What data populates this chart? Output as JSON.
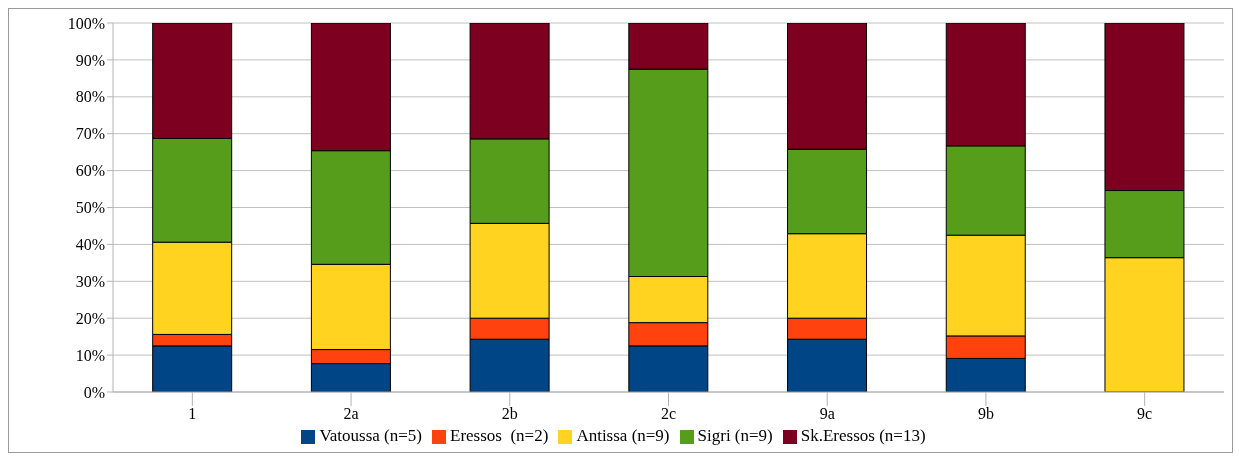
{
  "chart_data": {
    "type": "bar",
    "stacked": true,
    "categories": [
      "1",
      "2a",
      "2b",
      "2c",
      "9a",
      "9b",
      "9c"
    ],
    "series": [
      {
        "name": "Vatoussa (n=5)",
        "color": "#004586",
        "values": [
          12.5,
          7.7,
          14.3,
          12.5,
          14.3,
          9.1,
          0
        ]
      },
      {
        "name": "Eressos  (n=2)",
        "color": "#ff420e",
        "values": [
          3.1,
          3.8,
          5.7,
          6.3,
          5.7,
          6.1,
          0
        ]
      },
      {
        "name": "Antissa (n=9)",
        "color": "#ffd320",
        "values": [
          25,
          23.1,
          25.7,
          12.5,
          22.9,
          27.3,
          36.4
        ]
      },
      {
        "name": "Sigri (n=9)",
        "color": "#579d1c",
        "values": [
          28.1,
          30.8,
          22.9,
          56.2,
          22.9,
          24.2,
          18.2
        ]
      },
      {
        "name": "Sk.Eressos (n=13)",
        "color": "#7e0021",
        "values": [
          31.3,
          34.6,
          31.4,
          12.5,
          34.2,
          33.3,
          45.4
        ]
      }
    ],
    "ylim": [
      0,
      100
    ],
    "yticks": [
      {
        "value": 0,
        "label": "0%"
      },
      {
        "value": 10,
        "label": "10%"
      },
      {
        "value": 20,
        "label": "20%"
      },
      {
        "value": 30,
        "label": "30%"
      },
      {
        "value": 40,
        "label": "40%"
      },
      {
        "value": 50,
        "label": "50%"
      },
      {
        "value": 60,
        "label": "60%"
      },
      {
        "value": 70,
        "label": "70%"
      },
      {
        "value": 80,
        "label": "80%"
      },
      {
        "value": 90,
        "label": "90%"
      },
      {
        "value": 100,
        "label": "100%"
      }
    ],
    "grid": "y",
    "legend": "bottom"
  }
}
